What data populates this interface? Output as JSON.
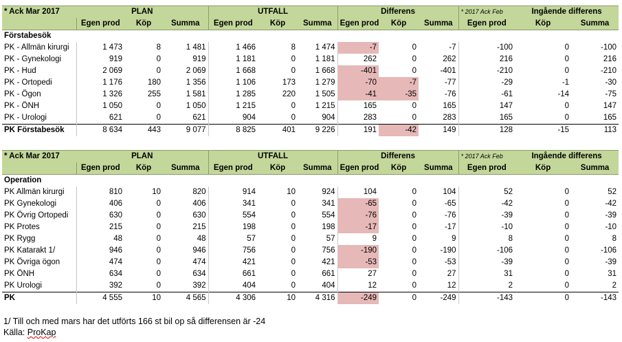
{
  "table1": {
    "title": "* Ack Mar 2017",
    "group_plan": "PLAN",
    "group_utfall": "UTFALL",
    "group_diff": "Differens",
    "group_ing_note": "* 2017 Ack Feb",
    "group_ing": "Ingående differens",
    "subheaders": [
      "Egen prod",
      "Köp",
      "Summa",
      "Egen prod",
      "Köp",
      "Summa",
      "Egen prod",
      "Köp",
      "Summa",
      "Egen prod",
      "Köp",
      "Summa"
    ],
    "section_label": "Förstabesök",
    "rows": [
      {
        "label": "PK - Allmän kirurgi",
        "v": [
          "1 473",
          "8",
          "1 481",
          "1 466",
          "8",
          "1 474",
          "-7",
          "0",
          "-7",
          "-100",
          "0",
          "-100"
        ],
        "neg": [
          6
        ]
      },
      {
        "label": "PK - Gynekologi",
        "v": [
          "919",
          "0",
          "919",
          "1 181",
          "0",
          "1 181",
          "262",
          "0",
          "262",
          "216",
          "0",
          "216"
        ],
        "neg": []
      },
      {
        "label": "PK - Hud",
        "v": [
          "2 069",
          "0",
          "2 069",
          "1 668",
          "0",
          "1 668",
          "-401",
          "0",
          "-401",
          "-210",
          "0",
          "-210"
        ],
        "neg": [
          6
        ]
      },
      {
        "label": "PK - Ortopedi",
        "v": [
          "1 176",
          "180",
          "1 356",
          "1 106",
          "173",
          "1 279",
          "-70",
          "-7",
          "-77",
          "-29",
          "-1",
          "-30"
        ],
        "neg": [
          6,
          7
        ]
      },
      {
        "label": "PK - Ögon",
        "v": [
          "1 326",
          "255",
          "1 581",
          "1 285",
          "220",
          "1 505",
          "-41",
          "-35",
          "-76",
          "-61",
          "-14",
          "-75"
        ],
        "neg": [
          6,
          7
        ]
      },
      {
        "label": "PK - ÖNH",
        "v": [
          "1 050",
          "0",
          "1 050",
          "1 215",
          "0",
          "1 215",
          "165",
          "0",
          "165",
          "147",
          "0",
          "147"
        ],
        "neg": []
      },
      {
        "label": "PK - Urologi",
        "v": [
          "621",
          "0",
          "621",
          "904",
          "0",
          "904",
          "283",
          "0",
          "283",
          "165",
          "0",
          "165"
        ],
        "neg": []
      }
    ],
    "total": {
      "label": "PK Förstabesök",
      "v": [
        "8 634",
        "443",
        "9 077",
        "8 825",
        "401",
        "9 226",
        "191",
        "-42",
        "149",
        "128",
        "-15",
        "113"
      ],
      "neg": [
        7
      ]
    }
  },
  "table2": {
    "title": "* Ack Mar 2017",
    "group_plan": "PLAN",
    "group_utfall": "UTFALL",
    "group_diff": "Differens",
    "group_ing_note": "* 2017 Ack Feb",
    "group_ing": "Ingående differens",
    "subheaders": [
      "Egen prod",
      "Köp",
      "Summa",
      "Egen prod",
      "Köp",
      "Summa",
      "Egen prod",
      "Köp",
      "Summa",
      "Egen prod",
      "Köp",
      "Summa"
    ],
    "section_label": "Operation",
    "rows": [
      {
        "label": "PK Allmän kirurgi",
        "v": [
          "810",
          "10",
          "820",
          "914",
          "10",
          "924",
          "104",
          "0",
          "104",
          "52",
          "0",
          "52"
        ],
        "neg": []
      },
      {
        "label": "PK Gynekologi",
        "v": [
          "406",
          "0",
          "406",
          "341",
          "0",
          "341",
          "-65",
          "0",
          "-65",
          "-42",
          "0",
          "-42"
        ],
        "neg": [
          6
        ]
      },
      {
        "label": "PK Övrig Ortopedi",
        "v": [
          "630",
          "0",
          "630",
          "554",
          "0",
          "554",
          "-76",
          "0",
          "-76",
          "-39",
          "0",
          "-39"
        ],
        "neg": [
          6
        ]
      },
      {
        "label": "PK Protes",
        "v": [
          "215",
          "0",
          "215",
          "198",
          "0",
          "198",
          "-17",
          "0",
          "-17",
          "-10",
          "0",
          "-10"
        ],
        "neg": [
          6
        ]
      },
      {
        "label": "PK Rygg",
        "v": [
          "48",
          "0",
          "48",
          "57",
          "0",
          "57",
          "9",
          "0",
          "9",
          "8",
          "0",
          "8"
        ],
        "neg": []
      },
      {
        "label": "PK Katarakt 1/",
        "v": [
          "946",
          "0",
          "946",
          "756",
          "0",
          "756",
          "-190",
          "0",
          "-190",
          "-106",
          "0",
          "-106"
        ],
        "neg": [
          6
        ]
      },
      {
        "label": "PK Övriga ögon",
        "v": [
          "474",
          "0",
          "474",
          "421",
          "0",
          "421",
          "-53",
          "0",
          "-53",
          "-39",
          "0",
          "-39"
        ],
        "neg": [
          6
        ]
      },
      {
        "label": "PK ÖNH",
        "v": [
          "634",
          "0",
          "634",
          "661",
          "0",
          "661",
          "27",
          "0",
          "27",
          "31",
          "0",
          "31"
        ],
        "neg": []
      },
      {
        "label": "PK Urologi",
        "v": [
          "392",
          "0",
          "392",
          "404",
          "0",
          "404",
          "12",
          "0",
          "12",
          "2",
          "0",
          "2"
        ],
        "neg": []
      }
    ],
    "total": {
      "label": "PK",
      "v": [
        "4 555",
        "10",
        "4 565",
        "4 306",
        "10",
        "4 316",
        "-249",
        "0",
        "-249",
        "-143",
        "0",
        "-143"
      ],
      "neg": [
        6
      ]
    }
  },
  "footer": {
    "note": "1/ Till och med mars har det utförts 166 st bil op så differensen är -24",
    "source_prefix": "Källa: ",
    "source_name": "ProKap"
  },
  "colors": {
    "header_bg": "#c4d79b",
    "negative_bg": "#e6b8b7"
  }
}
